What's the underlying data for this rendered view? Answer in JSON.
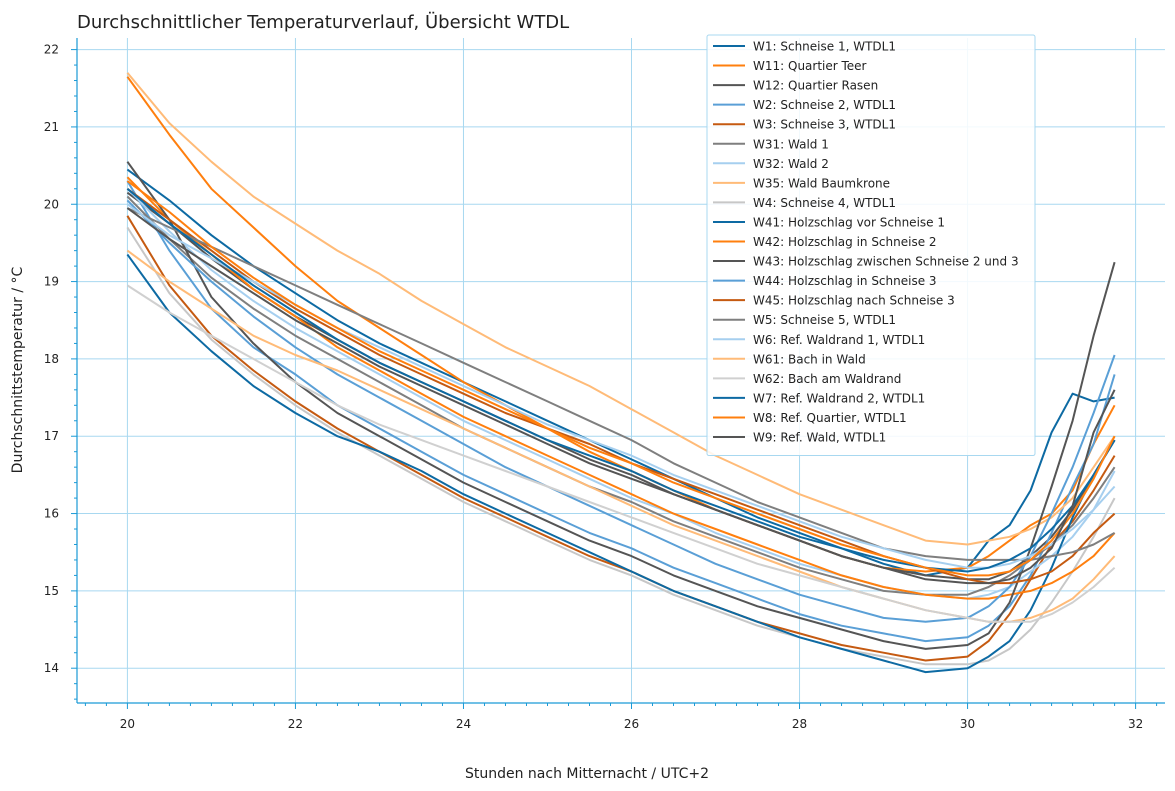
{
  "chart_data": {
    "type": "line",
    "title": "Durchschnittlicher Temperaturverlauf, Übersicht WTDL",
    "xlabel": "Stunden nach Mitternacht / UTC+2",
    "ylabel": "Durchschnittstemperatur / °C",
    "xlim": [
      19.4,
      32.35
    ],
    "ylim": [
      13.55,
      22.15
    ],
    "xticks": [
      20,
      22,
      24,
      26,
      28,
      30,
      32
    ],
    "yticks": [
      14,
      15,
      16,
      17,
      18,
      19,
      20,
      21,
      22
    ],
    "grid": true,
    "legend_position": "top-right",
    "x": [
      20,
      20.5,
      21,
      21.5,
      22,
      22.5,
      23,
      23.5,
      24,
      24.5,
      25,
      25.5,
      26,
      26.5,
      27,
      27.5,
      28,
      28.5,
      29,
      29.5,
      30,
      30.25,
      30.5,
      30.75,
      31,
      31.25,
      31.5,
      31.75
    ],
    "series": [
      {
        "name": "W1: Schneise 1, WTDL1",
        "color": "#0d6aa3",
        "values": [
          20.45,
          20.05,
          19.6,
          19.2,
          18.85,
          18.5,
          18.2,
          17.95,
          17.7,
          17.45,
          17.2,
          16.95,
          16.7,
          16.45,
          16.2,
          15.95,
          15.75,
          15.55,
          15.35,
          15.2,
          15.3,
          15.65,
          15.85,
          16.3,
          17.05,
          17.55,
          17.45,
          17.5
        ]
      },
      {
        "name": "W11: Quartier Teer",
        "color": "#ff7f0e",
        "values": [
          21.65,
          20.9,
          20.2,
          19.7,
          19.2,
          18.75,
          18.4,
          18.05,
          17.7,
          17.4,
          17.1,
          16.8,
          16.55,
          16.3,
          16.05,
          15.85,
          15.65,
          15.45,
          15.3,
          15.25,
          15.3,
          15.45,
          15.65,
          15.85,
          16.0,
          16.3,
          16.9,
          17.4
        ]
      },
      {
        "name": "W12: Quartier Rasen",
        "color": "#555555",
        "values": [
          20.15,
          19.75,
          19.3,
          18.9,
          18.55,
          18.25,
          17.95,
          17.7,
          17.45,
          17.2,
          16.95,
          16.7,
          16.5,
          16.25,
          16.05,
          15.85,
          15.65,
          15.45,
          15.3,
          15.2,
          15.15,
          15.15,
          15.25,
          15.45,
          15.7,
          16.05,
          16.5,
          16.95
        ]
      },
      {
        "name": "W2: Schneise 2, WTDL1",
        "color": "#5a9fd6",
        "values": [
          20.3,
          19.4,
          18.65,
          18.15,
          17.8,
          17.4,
          17.1,
          16.8,
          16.5,
          16.25,
          16.0,
          15.75,
          15.55,
          15.3,
          15.1,
          14.9,
          14.7,
          14.55,
          14.45,
          14.35,
          14.4,
          14.55,
          14.8,
          15.2,
          15.75,
          16.35,
          16.9,
          17.8
        ]
      },
      {
        "name": "W3: Schneise 3, WTDL1",
        "color": "#c55a11",
        "values": [
          19.85,
          18.95,
          18.3,
          17.85,
          17.45,
          17.1,
          16.8,
          16.5,
          16.2,
          15.95,
          15.7,
          15.45,
          15.25,
          15.0,
          14.8,
          14.6,
          14.45,
          14.3,
          14.2,
          14.1,
          14.15,
          14.35,
          14.7,
          15.15,
          15.6,
          15.9,
          16.3,
          16.75
        ]
      },
      {
        "name": "W31: Wald 1",
        "color": "#7f7f7f",
        "values": [
          20.1,
          19.55,
          19.05,
          18.65,
          18.3,
          18.0,
          17.7,
          17.4,
          17.1,
          16.85,
          16.6,
          16.35,
          16.15,
          15.9,
          15.7,
          15.5,
          15.3,
          15.15,
          15.0,
          14.95,
          14.95,
          15.05,
          15.2,
          15.4,
          15.6,
          15.85,
          16.2,
          16.6
        ]
      },
      {
        "name": "W32: Wald 2",
        "color": "#a6cfef",
        "values": [
          20.2,
          19.65,
          19.15,
          18.75,
          18.4,
          18.1,
          17.8,
          17.5,
          17.2,
          16.95,
          16.7,
          16.45,
          16.2,
          16.0,
          15.75,
          15.55,
          15.35,
          15.2,
          15.05,
          14.95,
          14.9,
          14.95,
          15.05,
          15.25,
          15.45,
          15.7,
          16.05,
          16.55
        ]
      },
      {
        "name": "W35: Wald Baumkrone",
        "color": "#ffbb78",
        "values": [
          21.7,
          21.05,
          20.55,
          20.1,
          19.75,
          19.4,
          19.1,
          18.75,
          18.45,
          18.15,
          17.9,
          17.65,
          17.35,
          17.05,
          16.75,
          16.5,
          16.25,
          16.05,
          15.85,
          15.65,
          15.6,
          15.65,
          15.7,
          15.8,
          15.95,
          16.2,
          16.6,
          17.0
        ]
      },
      {
        "name": "W4: Schneise 4, WTDL1",
        "color": "#c7c7c7",
        "values": [
          19.7,
          18.85,
          18.25,
          17.8,
          17.4,
          17.05,
          16.75,
          16.45,
          16.15,
          15.9,
          15.65,
          15.4,
          15.2,
          14.95,
          14.75,
          14.55,
          14.4,
          14.25,
          14.15,
          14.05,
          14.05,
          14.1,
          14.25,
          14.5,
          14.85,
          15.25,
          15.7,
          16.2
        ]
      },
      {
        "name": "W41: Holzschlag vor Schneise 1",
        "color": "#0d6aa3",
        "values": [
          19.35,
          18.6,
          18.1,
          17.65,
          17.3,
          17.0,
          16.8,
          16.55,
          16.25,
          16.0,
          15.75,
          15.5,
          15.25,
          15.0,
          14.8,
          14.6,
          14.4,
          14.25,
          14.1,
          13.95,
          14.0,
          14.15,
          14.35,
          14.75,
          15.3,
          15.95,
          16.5,
          16.95
        ]
      },
      {
        "name": "W42: Holzschlag in Schneise 2",
        "color": "#ff7f0e",
        "values": [
          20.35,
          19.8,
          19.35,
          18.9,
          18.55,
          18.15,
          17.85,
          17.55,
          17.25,
          17.0,
          16.75,
          16.5,
          16.25,
          16.0,
          15.8,
          15.6,
          15.4,
          15.2,
          15.05,
          14.95,
          14.9,
          14.9,
          14.95,
          15.0,
          15.1,
          15.25,
          15.45,
          15.75
        ]
      },
      {
        "name": "W43: Holzschlag zwischen Schneise 2 und 3",
        "color": "#555555",
        "values": [
          20.55,
          19.8,
          18.8,
          18.2,
          17.7,
          17.3,
          17.0,
          16.7,
          16.4,
          16.15,
          15.9,
          15.65,
          15.45,
          15.2,
          15.0,
          14.8,
          14.65,
          14.5,
          14.35,
          14.25,
          14.3,
          14.45,
          14.85,
          15.55,
          16.35,
          17.2,
          18.3,
          19.25
        ]
      },
      {
        "name": "W44: Holzschlag in Schneise 3",
        "color": "#5a9fd6",
        "values": [
          20.05,
          19.5,
          19.0,
          18.55,
          18.15,
          17.8,
          17.5,
          17.2,
          16.9,
          16.6,
          16.35,
          16.1,
          15.85,
          15.6,
          15.35,
          15.15,
          14.95,
          14.8,
          14.65,
          14.6,
          14.65,
          14.8,
          15.05,
          15.45,
          16.0,
          16.6,
          17.3,
          18.05
        ]
      },
      {
        "name": "W45: Holzschlag nach Schneise 3",
        "color": "#c55a11",
        "values": [
          20.2,
          19.8,
          19.4,
          19.0,
          18.65,
          18.35,
          18.05,
          17.8,
          17.55,
          17.3,
          17.1,
          16.9,
          16.65,
          16.45,
          16.25,
          16.05,
          15.85,
          15.65,
          15.45,
          15.3,
          15.15,
          15.1,
          15.1,
          15.15,
          15.25,
          15.45,
          15.75,
          16.0
        ]
      },
      {
        "name": "W5: Schneise 5, WTDL1",
        "color": "#7f7f7f",
        "values": [
          19.95,
          19.7,
          19.45,
          19.2,
          18.95,
          18.7,
          18.45,
          18.2,
          17.95,
          17.7,
          17.45,
          17.2,
          16.95,
          16.65,
          16.4,
          16.15,
          15.95,
          15.75,
          15.55,
          15.45,
          15.4,
          15.4,
          15.4,
          15.4,
          15.45,
          15.5,
          15.6,
          15.75
        ]
      },
      {
        "name": "W6: Ref. Waldrand 1, WTDL1",
        "color": "#a6cfef",
        "values": [
          20.0,
          19.6,
          19.3,
          19.0,
          18.7,
          18.4,
          18.15,
          17.9,
          17.65,
          17.4,
          17.15,
          16.95,
          16.75,
          16.5,
          16.3,
          16.1,
          15.9,
          15.7,
          15.55,
          15.4,
          15.3,
          15.3,
          15.35,
          15.45,
          15.6,
          15.8,
          16.05,
          16.35
        ]
      },
      {
        "name": "W61: Bach in Wald",
        "color": "#ffbb78",
        "values": [
          19.4,
          19.0,
          18.65,
          18.3,
          18.05,
          17.85,
          17.6,
          17.35,
          17.1,
          16.85,
          16.6,
          16.35,
          16.1,
          15.85,
          15.65,
          15.45,
          15.25,
          15.05,
          14.9,
          14.75,
          14.65,
          14.6,
          14.6,
          14.65,
          14.75,
          14.9,
          15.15,
          15.45
        ]
      },
      {
        "name": "W62: Bach am Waldrand",
        "color": "#d0d0d0",
        "values": [
          18.95,
          18.6,
          18.3,
          18.0,
          17.7,
          17.4,
          17.15,
          16.95,
          16.75,
          16.55,
          16.35,
          16.15,
          15.95,
          15.75,
          15.55,
          15.35,
          15.2,
          15.05,
          14.9,
          14.75,
          14.65,
          14.6,
          14.6,
          14.6,
          14.7,
          14.85,
          15.05,
          15.3
        ]
      },
      {
        "name": "W7: Ref. Waldrand 2, WTDL1",
        "color": "#0d6aa3",
        "values": [
          20.2,
          19.75,
          19.35,
          18.95,
          18.6,
          18.25,
          17.95,
          17.7,
          17.45,
          17.2,
          16.95,
          16.75,
          16.55,
          16.3,
          16.1,
          15.9,
          15.7,
          15.55,
          15.4,
          15.3,
          15.25,
          15.3,
          15.4,
          15.55,
          15.8,
          16.1,
          16.5,
          16.95
        ]
      },
      {
        "name": "W8: Ref. Quartier, WTDL1",
        "color": "#ff7f0e",
        "values": [
          20.3,
          19.9,
          19.45,
          19.05,
          18.7,
          18.4,
          18.1,
          17.85,
          17.6,
          17.35,
          17.1,
          16.85,
          16.65,
          16.4,
          16.2,
          16.0,
          15.8,
          15.6,
          15.45,
          15.3,
          15.2,
          15.2,
          15.25,
          15.4,
          15.65,
          16.0,
          16.45,
          17.0
        ]
      },
      {
        "name": "W9: Ref. Wald, WTDL1",
        "color": "#555555",
        "values": [
          19.95,
          19.55,
          19.2,
          18.85,
          18.5,
          18.2,
          17.9,
          17.65,
          17.4,
          17.15,
          16.9,
          16.65,
          16.45,
          16.25,
          16.05,
          15.85,
          15.65,
          15.45,
          15.3,
          15.15,
          15.1,
          15.1,
          15.15,
          15.3,
          15.55,
          16.1,
          17.05,
          17.6
        ]
      }
    ]
  }
}
